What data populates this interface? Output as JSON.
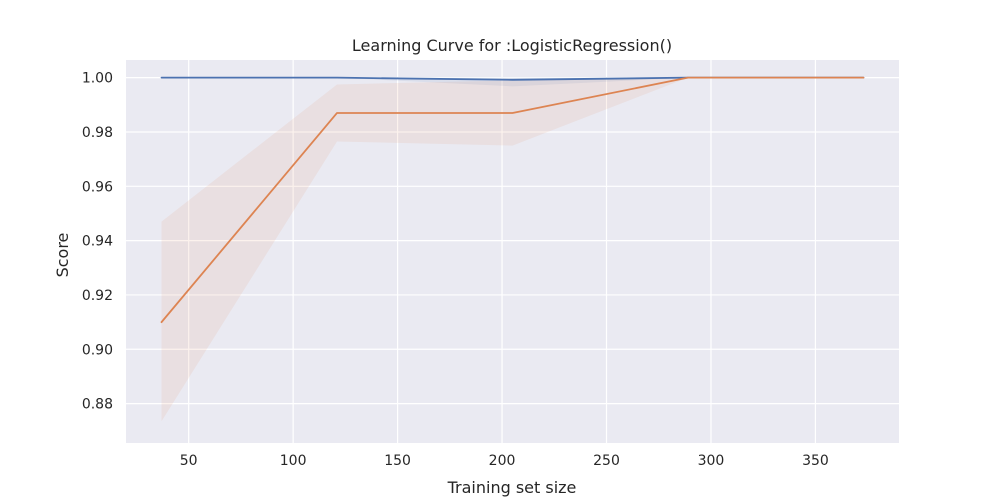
{
  "chart_data": {
    "type": "line",
    "title": "Learning Curve for :LogisticRegression()",
    "xlabel": "Training set size",
    "ylabel": "Score",
    "xlim": [
      20,
      390
    ],
    "ylim": [
      0.8655,
      1.0065
    ],
    "xticks": [
      50,
      100,
      150,
      200,
      250,
      300,
      350
    ],
    "xtick_labels": [
      "50",
      "100",
      "150",
      "200",
      "250",
      "300",
      "350"
    ],
    "yticks": [
      0.88,
      0.9,
      0.92,
      0.94,
      0.96,
      0.98,
      1.0
    ],
    "ytick_labels": [
      "0.88",
      "0.90",
      "0.92",
      "0.94",
      "0.96",
      "0.98",
      "1.00"
    ],
    "grid": true,
    "x": [
      37,
      121,
      205,
      289,
      373
    ],
    "series": [
      {
        "values": [
          1.0,
          1.0,
          0.9992,
          1.0,
          1.0
        ],
        "band_upper": [
          1.0,
          1.0,
          1.0,
          1.0,
          1.0
        ],
        "band_lower": [
          1.0,
          1.0,
          0.9968,
          1.0,
          1.0
        ],
        "color": "#4c72b0"
      },
      {
        "values": [
          0.91,
          0.987,
          0.987,
          1.0,
          1.0
        ],
        "band_upper": [
          0.947,
          0.9975,
          0.999,
          1.0,
          1.0
        ],
        "band_lower": [
          0.8735,
          0.9765,
          0.975,
          1.0,
          1.0
        ],
        "color": "#dd8452"
      }
    ],
    "background_color": "#eaeaf2",
    "grid_color": "#ffffff"
  }
}
